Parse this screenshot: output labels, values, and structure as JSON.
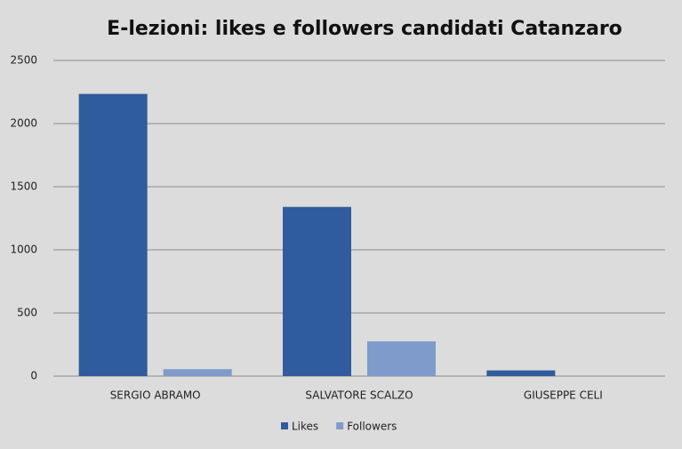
{
  "chart_data": {
    "type": "bar",
    "title": "E-lezioni: likes e followers candidati Catanzaro",
    "categories": [
      "SERGIO ABRAMO",
      "SALVATORE SCALZO",
      "GIUSEPPE CELI"
    ],
    "series": [
      {
        "name": "Likes",
        "color": "#2f5c9c",
        "values": [
          2235,
          1340,
          45
        ]
      },
      {
        "name": "Followers",
        "color": "#7f9bcc",
        "values": [
          55,
          275,
          0
        ]
      }
    ],
    "ylim": [
      0,
      2500
    ],
    "yticks": [
      0,
      500,
      1000,
      1500,
      2000,
      2500
    ],
    "grid": true,
    "legend": "bottom"
  }
}
